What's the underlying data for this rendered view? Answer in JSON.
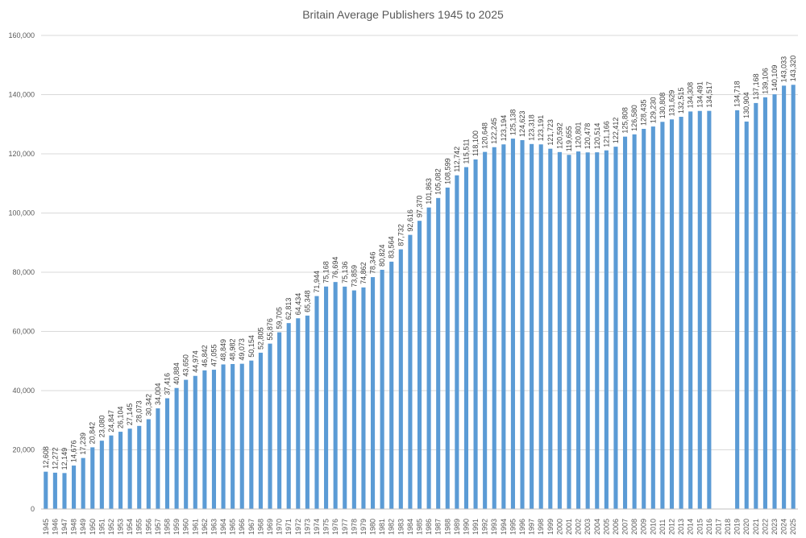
{
  "chart_data": {
    "type": "bar",
    "title": "Britain Average Publishers 1945 to 2025",
    "xlabel": "",
    "ylabel": "",
    "ylim": [
      0,
      160000
    ],
    "yticks": [
      0,
      20000,
      40000,
      60000,
      80000,
      100000,
      120000,
      140000,
      160000
    ],
    "ytick_labels": [
      "0",
      "20,000",
      "40,000",
      "60,000",
      "80,000",
      "100,000",
      "120,000",
      "140,000",
      "160,000"
    ],
    "grid": true,
    "bar_color": "#5b9bd5",
    "categories": [
      "1945",
      "1946",
      "1947",
      "1948",
      "1949",
      "1950",
      "1951",
      "1952",
      "1953",
      "1954",
      "1955",
      "1956",
      "1957",
      "1958",
      "1959",
      "1960",
      "1961",
      "1962",
      "1963",
      "1964",
      "1965",
      "1966",
      "1967",
      "1968",
      "1969",
      "1970",
      "1971",
      "1972",
      "1973",
      "1974",
      "1975",
      "1976",
      "1977",
      "1978",
      "1979",
      "1980",
      "1981",
      "1982",
      "1983",
      "1984",
      "1985",
      "1986",
      "1987",
      "1988",
      "1989",
      "1990",
      "1991",
      "1992",
      "1993",
      "1994",
      "1995",
      "1996",
      "1997",
      "1998",
      "1999",
      "2000",
      "2001",
      "2002",
      "2003",
      "2004",
      "2005",
      "2006",
      "2007",
      "2008",
      "2009",
      "2010",
      "2011",
      "2012",
      "2013",
      "2014",
      "2015",
      "2016",
      "2017",
      "2018",
      "2019",
      "2020",
      "2021",
      "2022",
      "2023",
      "2024",
      "2025"
    ],
    "values": [
      12608,
      12272,
      12149,
      14676,
      17239,
      20842,
      23080,
      24847,
      26104,
      27145,
      28073,
      30342,
      34004,
      37416,
      40884,
      43650,
      44974,
      46842,
      47055,
      48849,
      48982,
      49073,
      50154,
      52805,
      55876,
      59705,
      62813,
      64434,
      65348,
      71944,
      75168,
      76694,
      75136,
      73859,
      74862,
      78346,
      80824,
      83564,
      87732,
      92616,
      97370,
      101863,
      105082,
      108599,
      112742,
      115511,
      118100,
      120648,
      122245,
      123194,
      125138,
      124623,
      123318,
      123191,
      121723,
      120592,
      119655,
      120801,
      120478,
      120514,
      121166,
      122412,
      125808,
      126580,
      128435,
      129230,
      130808,
      131629,
      132515,
      134308,
      134491,
      134517,
      null,
      null,
      134718,
      130904,
      137168,
      139106,
      140109,
      143033,
      143320
    ],
    "data_labels": [
      "12,608",
      "12,272",
      "12,149",
      "14,676",
      "17,239",
      "20,842",
      "23,080",
      "24,847",
      "26,104",
      "27,145",
      "28,073",
      "30,342",
      "34,004",
      "37,416",
      "40,884",
      "43,650",
      "44,974",
      "46,842",
      "47,055",
      "48,849",
      "48,982",
      "49,073",
      "50,154",
      "52,805",
      "55,876",
      "59,705",
      "62,813",
      "64,434",
      "65,348",
      "71,944",
      "75,168",
      "76,694",
      "75,136",
      "73,859",
      "74,862",
      "78,346",
      "80,824",
      "83,564",
      "87,732",
      "92,616",
      "97,370",
      "101,863",
      "105,082",
      "108,599",
      "112,742",
      "115,511",
      "118,100",
      "120,648",
      "122,245",
      "123,194",
      "125,138",
      "124,623",
      "123,318",
      "123,191",
      "121,723",
      "120,592",
      "119,655",
      "120,801",
      "120,478",
      "120,514",
      "121,166",
      "122,412",
      "125,808",
      "126,580",
      "128,435",
      "129,230",
      "130,808",
      "131,629",
      "132,515",
      "134,308",
      "134,491",
      "134,517",
      "",
      "",
      "134,718",
      "130,904",
      "137,168",
      "139,106",
      "140,109",
      "143,033",
      "143,320"
    ]
  }
}
